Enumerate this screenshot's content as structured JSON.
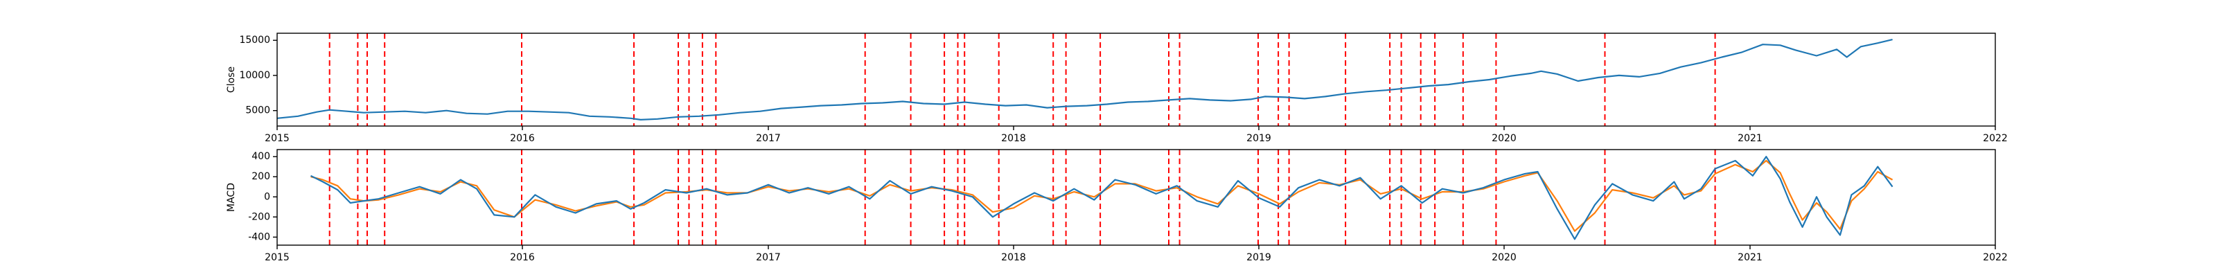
{
  "chart_data": [
    {
      "type": "line",
      "ylabel": "Close",
      "xlabel": "",
      "xlim": [
        "2015-01-01",
        "2022-01-01"
      ],
      "ylim": [
        2800,
        16000
      ],
      "x_ticks": [
        "2015",
        "2016",
        "2017",
        "2018",
        "2019",
        "2020",
        "2021",
        "2022"
      ],
      "y_ticks": [
        5000,
        10000,
        15000
      ],
      "grid": false,
      "series_color": "#1f77b4",
      "vline_color": "#ff0000",
      "series": [
        {
          "x": [
            "2015-01-01",
            "2015-02-01",
            "2015-03-01",
            "2015-03-20",
            "2015-04-15",
            "2015-05-10",
            "2015-06-10",
            "2015-07-10",
            "2015-08-10",
            "2015-09-10",
            "2015-10-10",
            "2015-11-10",
            "2015-12-10",
            "2016-01-10",
            "2016-02-10",
            "2016-03-10",
            "2016-04-10",
            "2016-05-10",
            "2016-06-10",
            "2016-06-25",
            "2016-07-20",
            "2016-08-20",
            "2016-09-20",
            "2016-10-20",
            "2016-11-20",
            "2016-12-20",
            "2017-01-20",
            "2017-02-20",
            "2017-03-20",
            "2017-04-20",
            "2017-05-20",
            "2017-06-20",
            "2017-07-20",
            "2017-08-20",
            "2017-09-20",
            "2017-10-20",
            "2017-11-20",
            "2017-12-20",
            "2018-01-20",
            "2018-02-20",
            "2018-03-20",
            "2018-04-20",
            "2018-05-20",
            "2018-06-20",
            "2018-07-20",
            "2018-08-20",
            "2018-09-20",
            "2018-10-20",
            "2018-11-20",
            "2018-12-20",
            "2019-01-10",
            "2019-02-10",
            "2019-03-10",
            "2019-04-10",
            "2019-05-10",
            "2019-06-10",
            "2019-07-10",
            "2019-08-10",
            "2019-09-10",
            "2019-10-10",
            "2019-11-10",
            "2019-12-10",
            "2020-01-10",
            "2020-02-10",
            "2020-02-25",
            "2020-03-20",
            "2020-04-20",
            "2020-05-20",
            "2020-06-20",
            "2020-07-20",
            "2020-08-20",
            "2020-09-20",
            "2020-10-20",
            "2020-11-20",
            "2020-12-20",
            "2021-01-20",
            "2021-02-15",
            "2021-03-10",
            "2021-04-10",
            "2021-05-10",
            "2021-05-25",
            "2021-06-15",
            "2021-07-10",
            "2021-08-01"
          ],
          "values": [
            3900,
            4200,
            4800,
            5100,
            4900,
            4700,
            4800,
            4900,
            4700,
            5000,
            4600,
            4500,
            4900,
            4900,
            4800,
            4700,
            4200,
            4100,
            3900,
            3700,
            3800,
            4100,
            4200,
            4400,
            4700,
            4900,
            5300,
            5500,
            5700,
            5800,
            6000,
            6100,
            6300,
            6000,
            5900,
            6200,
            5900,
            5700,
            5800,
            5400,
            5600,
            5700,
            5900,
            6200,
            6300,
            6500,
            6700,
            6500,
            6400,
            6600,
            7000,
            6900,
            6700,
            7000,
            7400,
            7700,
            7900,
            8200,
            8500,
            8700,
            9100,
            9400,
            9900,
            10300,
            10600,
            10200,
            9200,
            9700,
            10000,
            9800,
            10300,
            11200,
            11800,
            12600,
            13300,
            14400,
            14300,
            13600,
            12800,
            13700,
            12600,
            14100,
            14600,
            15100
          ]
        }
      ]
    },
    {
      "type": "line",
      "ylabel": "MACD",
      "xlabel": "",
      "xlim": [
        "2015-01-01",
        "2022-01-01"
      ],
      "ylim": [
        -480,
        470
      ],
      "x_ticks": [
        "2015",
        "2016",
        "2017",
        "2018",
        "2019",
        "2020",
        "2021",
        "2022"
      ],
      "y_ticks": [
        -400,
        -200,
        0,
        200,
        400
      ],
      "grid": false,
      "vline_color": "#ff0000",
      "series": [
        {
          "color": "#1f77b4",
          "x": [
            "2015-02-20",
            "2015-03-10",
            "2015-04-01",
            "2015-04-20",
            "2015-05-10",
            "2015-06-01",
            "2015-07-01",
            "2015-08-01",
            "2015-09-01",
            "2015-10-01",
            "2015-10-25",
            "2015-11-20",
            "2015-12-20",
            "2016-01-20",
            "2016-02-20",
            "2016-03-20",
            "2016-04-20",
            "2016-05-20",
            "2016-06-10",
            "2016-06-30",
            "2016-08-01",
            "2016-09-01",
            "2016-10-01",
            "2016-11-01",
            "2016-12-01",
            "2017-01-01",
            "2017-02-01",
            "2017-03-01",
            "2017-04-01",
            "2017-05-01",
            "2017-06-01",
            "2017-07-01",
            "2017-08-01",
            "2017-09-01",
            "2017-10-01",
            "2017-11-01",
            "2017-12-01",
            "2018-01-01",
            "2018-02-01",
            "2018-03-01",
            "2018-04-01",
            "2018-05-01",
            "2018-06-01",
            "2018-07-01",
            "2018-08-01",
            "2018-09-01",
            "2018-10-01",
            "2018-11-01",
            "2018-12-01",
            "2019-01-01",
            "2019-02-01",
            "2019-03-01",
            "2019-04-01",
            "2019-05-01",
            "2019-06-01",
            "2019-07-01",
            "2019-08-01",
            "2019-09-01",
            "2019-10-01",
            "2019-11-01",
            "2019-12-01",
            "2020-01-01",
            "2020-02-01",
            "2020-02-20",
            "2020-03-20",
            "2020-04-15",
            "2020-05-15",
            "2020-06-10",
            "2020-07-10",
            "2020-08-10",
            "2020-09-10",
            "2020-09-25",
            "2020-10-20",
            "2020-11-10",
            "2020-12-10",
            "2021-01-05",
            "2021-01-25",
            "2021-02-15",
            "2021-03-01",
            "2021-03-20",
            "2021-04-10",
            "2021-04-25",
            "2021-05-15",
            "2021-06-01",
            "2021-06-20",
            "2021-07-10",
            "2021-08-01"
          ],
          "values": [
            210,
            150,
            70,
            -60,
            -40,
            -20,
            40,
            100,
            30,
            170,
            80,
            -180,
            -200,
            20,
            -100,
            -160,
            -70,
            -40,
            -120,
            -60,
            70,
            40,
            80,
            20,
            40,
            120,
            40,
            90,
            30,
            100,
            -20,
            160,
            30,
            100,
            60,
            0,
            -200,
            -70,
            40,
            -40,
            80,
            -30,
            170,
            120,
            30,
            110,
            -40,
            -100,
            160,
            -10,
            -100,
            90,
            170,
            110,
            190,
            -20,
            110,
            -60,
            80,
            40,
            90,
            170,
            230,
            250,
            -120,
            -420,
            -80,
            130,
            20,
            -40,
            150,
            -20,
            80,
            280,
            360,
            210,
            400,
            180,
            -50,
            -300,
            0,
            -200,
            -380,
            20,
            110,
            300,
            100
          ]
        },
        {
          "color": "#ff7f0e",
          "x": [
            "2015-02-20",
            "2015-03-10",
            "2015-04-01",
            "2015-04-20",
            "2015-05-10",
            "2015-06-01",
            "2015-07-01",
            "2015-08-01",
            "2015-09-01",
            "2015-10-01",
            "2015-10-25",
            "2015-11-20",
            "2015-12-20",
            "2016-01-20",
            "2016-02-20",
            "2016-03-20",
            "2016-04-20",
            "2016-05-20",
            "2016-06-10",
            "2016-06-30",
            "2016-08-01",
            "2016-09-01",
            "2016-10-01",
            "2016-11-01",
            "2016-12-01",
            "2017-01-01",
            "2017-02-01",
            "2017-03-01",
            "2017-04-01",
            "2017-05-01",
            "2017-06-01",
            "2017-07-01",
            "2017-08-01",
            "2017-09-01",
            "2017-10-01",
            "2017-11-01",
            "2017-12-01",
            "2018-01-01",
            "2018-02-01",
            "2018-03-01",
            "2018-04-01",
            "2018-05-01",
            "2018-06-01",
            "2018-07-01",
            "2018-08-01",
            "2018-09-01",
            "2018-10-01",
            "2018-11-01",
            "2018-12-01",
            "2019-01-01",
            "2019-02-01",
            "2019-03-01",
            "2019-04-01",
            "2019-05-01",
            "2019-06-01",
            "2019-07-01",
            "2019-08-01",
            "2019-09-01",
            "2019-10-01",
            "2019-11-01",
            "2019-12-01",
            "2020-01-01",
            "2020-02-01",
            "2020-02-20",
            "2020-03-20",
            "2020-04-15",
            "2020-05-15",
            "2020-06-10",
            "2020-07-10",
            "2020-08-10",
            "2020-09-10",
            "2020-09-25",
            "2020-10-20",
            "2020-11-10",
            "2020-12-10",
            "2021-01-05",
            "2021-01-25",
            "2021-02-15",
            "2021-03-01",
            "2021-03-20",
            "2021-04-10",
            "2021-04-25",
            "2021-05-15",
            "2021-06-01",
            "2021-06-20",
            "2021-07-10",
            "2021-08-01"
          ],
          "values": [
            200,
            170,
            110,
            -20,
            -40,
            -30,
            20,
            80,
            50,
            150,
            110,
            -130,
            -200,
            -30,
            -80,
            -140,
            -90,
            -50,
            -100,
            -80,
            40,
            50,
            70,
            40,
            40,
            100,
            60,
            80,
            50,
            80,
            10,
            120,
            60,
            90,
            70,
            20,
            -150,
            -110,
            10,
            -20,
            50,
            0,
            130,
            130,
            60,
            90,
            0,
            -70,
            110,
            30,
            -70,
            50,
            140,
            120,
            170,
            30,
            80,
            -20,
            50,
            50,
            80,
            150,
            210,
            240,
            -40,
            -340,
            -160,
            70,
            40,
            -10,
            110,
            20,
            60,
            230,
            320,
            250,
            360,
            240,
            30,
            -230,
            -60,
            -150,
            -320,
            -40,
            80,
            250,
            170
          ]
        }
      ]
    }
  ],
  "event_dates": [
    "2015-03-20",
    "2015-05-01",
    "2015-05-15",
    "2015-06-10",
    "2015-12-31",
    "2016-06-15",
    "2016-08-20",
    "2016-09-05",
    "2016-09-25",
    "2016-10-15",
    "2017-05-25",
    "2017-08-01",
    "2017-09-20",
    "2017-10-10",
    "2017-10-20",
    "2017-12-10",
    "2018-03-01",
    "2018-03-20",
    "2018-05-10",
    "2018-08-20",
    "2018-09-05",
    "2018-12-31",
    "2019-01-30",
    "2019-02-15",
    "2019-05-10",
    "2019-07-15",
    "2019-08-01",
    "2019-08-30",
    "2019-09-20",
    "2019-11-01",
    "2019-12-20",
    "2020-05-30",
    "2020-11-10"
  ]
}
